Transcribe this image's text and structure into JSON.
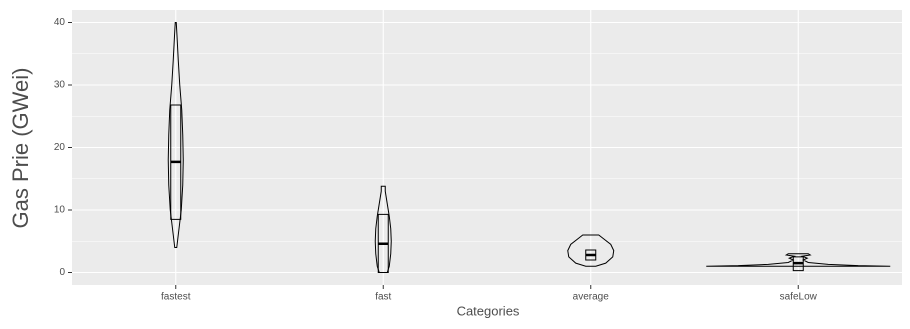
{
  "chart_data": {
    "type": "violin",
    "x_label": "Categories",
    "y_label": "Gas Prie (GWei)",
    "categories": [
      "fastest",
      "fast",
      "average",
      "safeLow"
    ],
    "ylim": [
      -2,
      42
    ],
    "yticks": [
      0,
      10,
      20,
      30,
      40
    ],
    "grid": true,
    "panel_color": "#ebebeb",
    "line_color": "#000000",
    "series": [
      {
        "q1": 8.5,
        "median": 17.7,
        "q3": 26.8,
        "violin_y": [
          4,
          6,
          8,
          10,
          14,
          18,
          22,
          26,
          30,
          34,
          38,
          40
        ],
        "violin_density": [
          0.01,
          0.025,
          0.04,
          0.055,
          0.07,
          0.075,
          0.07,
          0.06,
          0.04,
          0.025,
          0.012,
          0.005
        ]
      },
      {
        "q1": 0,
        "median": 4.6,
        "q3": 9.3,
        "violin_y": [
          0,
          1,
          3,
          5,
          7,
          9,
          11,
          13,
          13.8
        ],
        "violin_density": [
          0.04,
          0.06,
          0.075,
          0.08,
          0.075,
          0.06,
          0.04,
          0.02,
          0.02
        ]
      },
      {
        "q1": 2.0,
        "median": 2.8,
        "q3": 3.6,
        "violin_y": [
          1,
          1.5,
          2.5,
          3.5,
          4.5,
          5.5,
          6
        ],
        "violin_density": [
          0.05,
          0.15,
          0.22,
          0.23,
          0.2,
          0.12,
          0.08
        ]
      },
      {
        "q1": 0.3,
        "median": 1.5,
        "q3": 2.5,
        "violin_y": [
          1,
          1.1,
          1.3,
          1.6,
          2,
          2.3,
          2.6,
          2.8,
          3
        ],
        "violin_density": [
          0.92,
          0.6,
          0.3,
          0.1,
          0.05,
          0.09,
          0.04,
          0.12,
          0.1
        ]
      }
    ]
  }
}
